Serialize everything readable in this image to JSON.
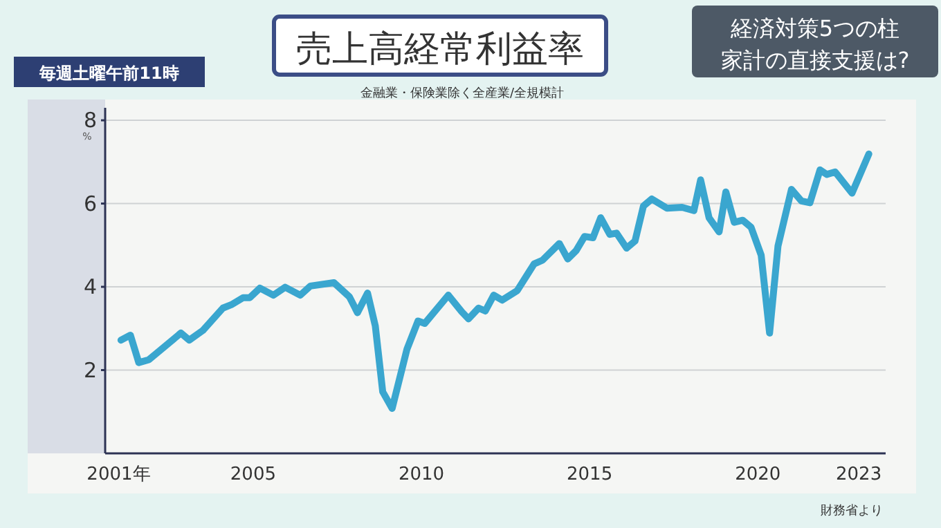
{
  "chart_data": {
    "type": "line",
    "title": "売上高経常利益率",
    "subtitle": "金融業・保険業除く全産業/全規模計",
    "ylabel": "%",
    "annotations": [
      "毎週土曜午前11時",
      "経済対策5つの柱",
      "家計の直接支援は?",
      "財務省より"
    ],
    "x": [
      2001.07,
      2001.35,
      2001.6,
      2001.9,
      2002.85,
      2003.1,
      2003.5,
      2004.1,
      2004.35,
      2004.7,
      2004.9,
      2005.2,
      2005.6,
      2005.95,
      2006.4,
      2006.7,
      2007.4,
      2007.86,
      2008.1,
      2008.4,
      2008.63,
      2008.85,
      2009.13,
      2009.57,
      2009.9,
      2010.1,
      2010.8,
      2011.2,
      2011.4,
      2011.7,
      2011.9,
      2012.15,
      2012.4,
      2012.85,
      2013.35,
      2013.6,
      2014.1,
      2014.35,
      2014.6,
      2014.85,
      2015.1,
      2015.33,
      2015.6,
      2015.8,
      2016.1,
      2016.35,
      2016.6,
      2016.85,
      2017.3,
      2017.75,
      2018.1,
      2018.3,
      2018.55,
      2018.85,
      2019.05,
      2019.3,
      2019.55,
      2019.8,
      2020.1,
      2020.35,
      2020.6,
      2021.0,
      2021.3,
      2021.55,
      2021.85,
      2022.05,
      2022.3,
      2022.8,
      2023.3
    ],
    "series": [
      {
        "color": "#3aa6cf",
        "values": [
          2.72,
          2.84,
          2.18,
          2.25,
          2.89,
          2.72,
          2.95,
          3.49,
          3.57,
          3.74,
          3.74,
          3.97,
          3.8,
          3.99,
          3.8,
          4.02,
          4.1,
          3.76,
          3.38,
          3.85,
          3.06,
          1.48,
          1.08,
          2.5,
          3.18,
          3.12,
          3.8,
          3.4,
          3.23,
          3.49,
          3.42,
          3.8,
          3.68,
          3.91,
          4.55,
          4.64,
          5.04,
          4.67,
          4.87,
          5.21,
          5.18,
          5.66,
          5.26,
          5.29,
          4.93,
          5.1,
          5.94,
          6.11,
          5.89,
          5.91,
          5.83,
          6.57,
          5.66,
          5.32,
          6.28,
          5.55,
          5.6,
          5.43,
          4.76,
          2.89,
          4.98,
          6.34,
          6.06,
          6.02,
          6.81,
          6.7,
          6.76,
          6.25,
          7.19
        ]
      }
    ],
    "xlim": [
      2000.6,
      2023.8
    ],
    "xticks": [
      {
        "value": 2001,
        "label": "2001年"
      },
      2005,
      2010,
      2015,
      2020,
      2023
    ],
    "ylim": [
      0,
      8.3
    ],
    "yticks": [
      2,
      4,
      6,
      8
    ],
    "grid": "y",
    "marker": "none",
    "line_style": "solid"
  }
}
